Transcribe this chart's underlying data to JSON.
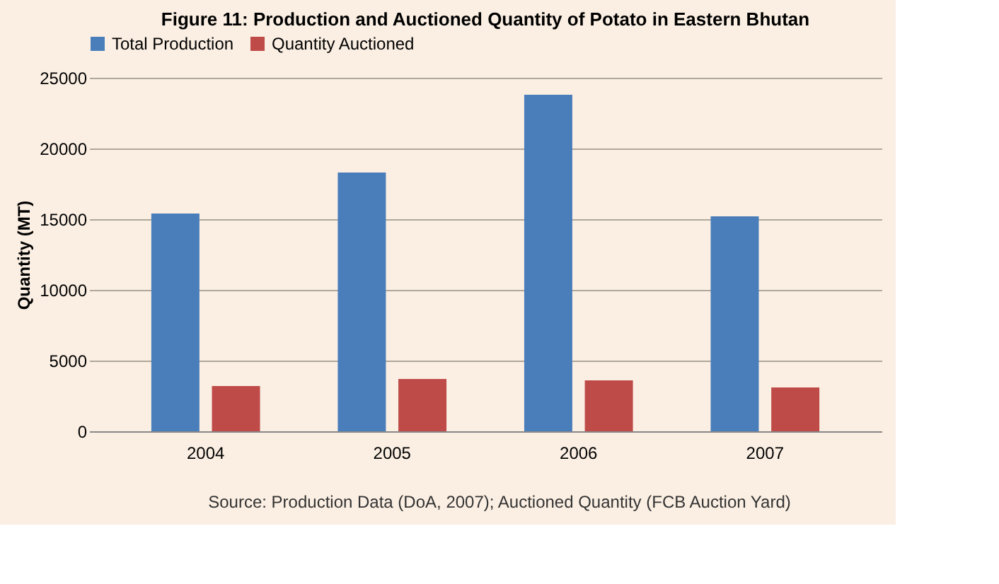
{
  "chart_data": {
    "type": "bar",
    "title": "Figure 11: Production and Auctioned Quantity of Potato in Eastern Bhutan",
    "ylabel": "Quantity  (MT)",
    "categories": [
      "2004",
      "2005",
      "2006",
      "2007"
    ],
    "series": [
      {
        "name": "Total Production",
        "color": "#4a7ebb",
        "values": [
          15400,
          18300,
          23800,
          15200
        ]
      },
      {
        "name": "Quantity Auctioned",
        "color": "#be4b48",
        "values": [
          3200,
          3700,
          3600,
          3100
        ]
      }
    ],
    "ylim": [
      0,
      25000
    ],
    "yticks": [
      0,
      5000,
      10000,
      15000,
      20000,
      25000
    ],
    "grid": "y",
    "legend": "top",
    "annotations": [
      "Source: Production Data (DoA, 2007); Auctioned Quantity (FCB Auction Yard)"
    ]
  }
}
